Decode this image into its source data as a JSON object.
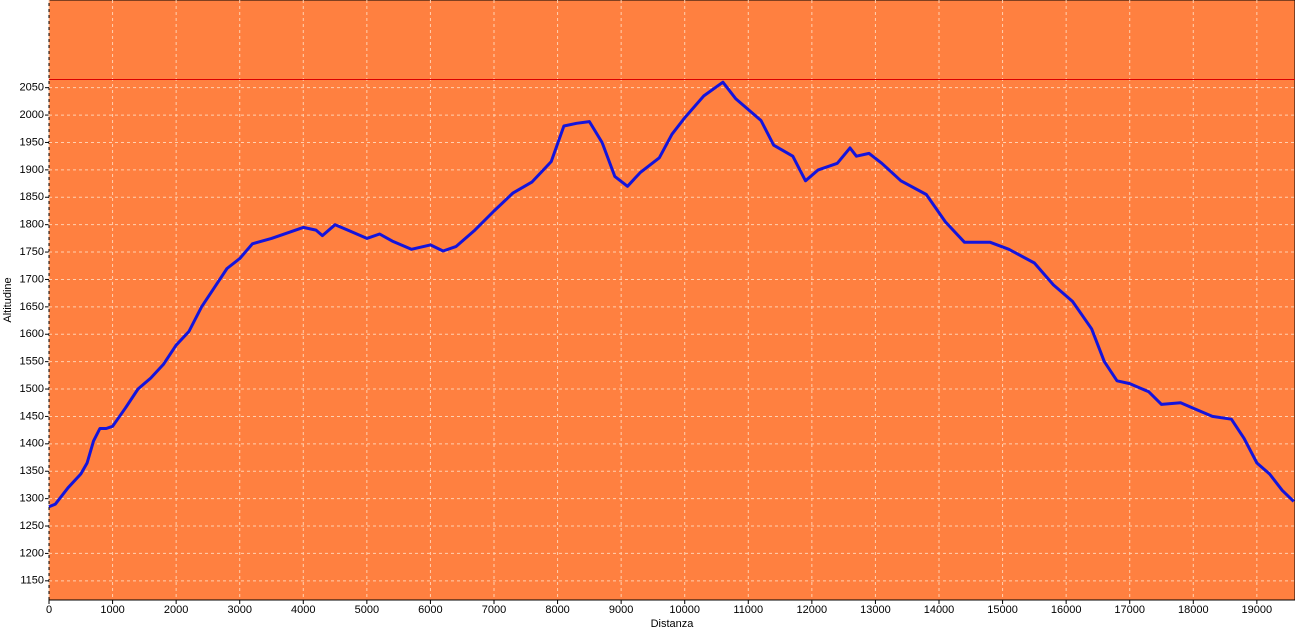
{
  "chart_data": {
    "type": "line",
    "x_label": "Distanza",
    "y_label": "Altitudine",
    "x": [
      0,
      100,
      300,
      500,
      600,
      700,
      800,
      900,
      1000,
      1200,
      1400,
      1600,
      1800,
      2000,
      2200,
      2400,
      2600,
      2800,
      3000,
      3200,
      3500,
      4000,
      4200,
      4300,
      4500,
      4700,
      5000,
      5200,
      5400,
      5700,
      6000,
      6200,
      6400,
      6700,
      7000,
      7300,
      7600,
      7900,
      8100,
      8300,
      8500,
      8700,
      8900,
      9100,
      9300,
      9600,
      9800,
      10000,
      10300,
      10600,
      10800,
      11200,
      11400,
      11700,
      11900,
      12100,
      12400,
      12600,
      12700,
      12900,
      13100,
      13400,
      13800,
      14100,
      14400,
      14800,
      15100,
      15500,
      15800,
      16100,
      16400,
      16600,
      16800,
      17000,
      17300,
      17500,
      17800,
      18000,
      18300,
      18600,
      18800,
      19000,
      19200,
      19400,
      19580
    ],
    "series": [
      {
        "name": "Altitudine",
        "color": "#1414dc",
        "values": [
          1285,
          1290,
          1320,
          1345,
          1365,
          1405,
          1428,
          1428,
          1432,
          1465,
          1500,
          1520,
          1545,
          1580,
          1605,
          1650,
          1685,
          1720,
          1738,
          1765,
          1775,
          1795,
          1790,
          1780,
          1800,
          1790,
          1775,
          1783,
          1770,
          1755,
          1763,
          1752,
          1760,
          1790,
          1825,
          1858,
          1878,
          1915,
          1980,
          1985,
          1988,
          1950,
          1888,
          1870,
          1895,
          1922,
          1965,
          1995,
          2035,
          2060,
          2030,
          1990,
          1945,
          1925,
          1880,
          1900,
          1912,
          1940,
          1925,
          1930,
          1912,
          1880,
          1855,
          1805,
          1768,
          1768,
          1755,
          1730,
          1690,
          1660,
          1610,
          1550,
          1515,
          1510,
          1495,
          1472,
          1475,
          1465,
          1450,
          1445,
          1410,
          1365,
          1345,
          1315,
          1295
        ]
      }
    ],
    "max_line": 2065,
    "max_line_color": "#dc0000",
    "background": "#ff8040",
    "grid": true,
    "xlim": [
      0,
      19600
    ],
    "ylim": [
      1115,
      2210
    ],
    "xticks": [
      0,
      1000,
      2000,
      3000,
      4000,
      5000,
      6000,
      7000,
      8000,
      9000,
      10000,
      11000,
      12000,
      13000,
      14000,
      15000,
      16000,
      17000,
      18000,
      19000
    ],
    "yticks": [
      1150,
      1200,
      1250,
      1300,
      1350,
      1400,
      1450,
      1500,
      1550,
      1600,
      1650,
      1700,
      1750,
      1800,
      1850,
      1900,
      1950,
      2000,
      2050
    ]
  }
}
